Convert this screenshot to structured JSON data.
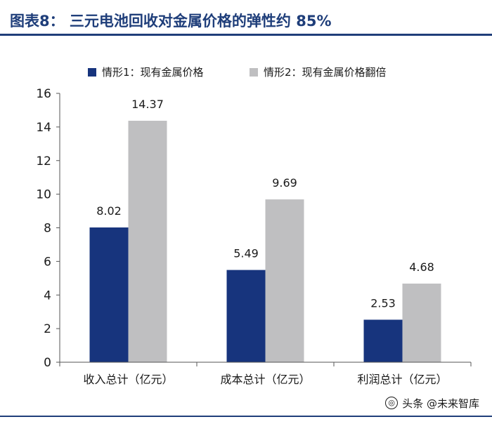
{
  "header": {
    "title": "图表8：   三元电池回收对金属价格的弹性约 85%"
  },
  "colors": {
    "accent": "#1f3e7a",
    "series_1": "#17347d",
    "series_2": "#bfbfc1"
  },
  "watermark": {
    "text": "头条 @未来智库"
  },
  "chart_data": {
    "type": "bar",
    "categories": [
      "收入总计（亿元）",
      "成本总计（亿元）",
      "利润总计（亿元）"
    ],
    "series": [
      {
        "name": "情形1：现有金属价格",
        "values": [
          8.02,
          5.49,
          2.53
        ]
      },
      {
        "name": "情形2：现有金属价格翻倍",
        "values": [
          14.37,
          9.69,
          4.68
        ]
      }
    ],
    "data_labels": [
      [
        "8.02",
        "5.49",
        "2.53"
      ],
      [
        "14.37",
        "9.69",
        "4.68"
      ]
    ],
    "yticks": [
      0,
      2,
      4,
      6,
      8,
      10,
      12,
      14,
      16
    ],
    "ylim": [
      0,
      16
    ],
    "title": "",
    "xlabel": "",
    "ylabel": "",
    "legend_position": "top",
    "grid": false
  }
}
